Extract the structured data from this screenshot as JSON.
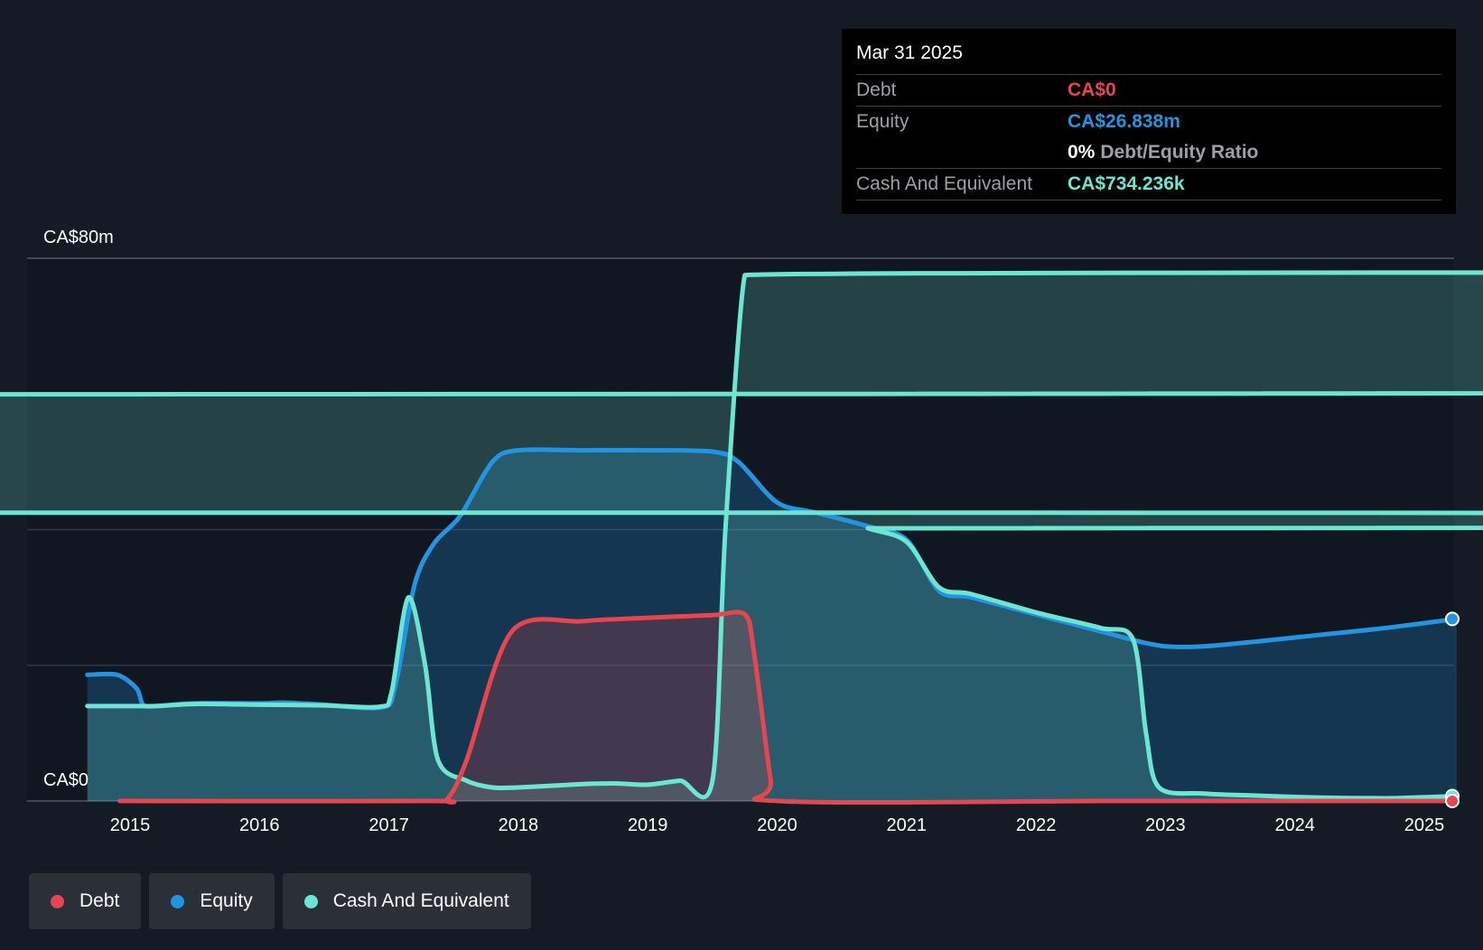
{
  "tooltip": {
    "date": "Mar 31 2025",
    "debt_label": "Debt",
    "debt_value": "CA$0",
    "equity_label": "Equity",
    "equity_value": "CA$26.838m",
    "ratio_value": "0%",
    "ratio_label": "Debt/Equity Ratio",
    "cash_label": "Cash And Equivalent",
    "cash_value": "CA$734.236k"
  },
  "legend": [
    {
      "label": "Debt",
      "color": "#e5464f"
    },
    {
      "label": "Equity",
      "color": "#2394df"
    },
    {
      "label": "Cash And Equivalent",
      "color": "#6ce5d3"
    }
  ],
  "chart_data": {
    "type": "area",
    "xlabel": "",
    "ylabel": "",
    "ylim": [
      0,
      80
    ],
    "y_unit": "CA$m",
    "y_tick_labels": [
      "CA$0",
      "CA$80m"
    ],
    "x_tick_labels": [
      "2015",
      "2016",
      "2017",
      "2018",
      "2019",
      "2020",
      "2021",
      "2022",
      "2023",
      "2024",
      "2025"
    ],
    "grid": true,
    "legend_position": "bottom-left",
    "series": [
      {
        "name": "Debt",
        "color": "#e5464f",
        "points": [
          [
            2014.92,
            0
          ],
          [
            2017.3,
            0
          ],
          [
            2017.45,
            0.3
          ],
          [
            2017.6,
            6
          ],
          [
            2017.95,
            25
          ],
          [
            2018.5,
            26.5
          ],
          [
            2019.0,
            27
          ],
          [
            2019.5,
            27.4
          ],
          [
            2019.75,
            27.5
          ],
          [
            2019.82,
            22
          ],
          [
            2019.95,
            3
          ],
          [
            2020.0,
            0
          ],
          [
            2022.5,
            0
          ],
          [
            2023.5,
            0
          ],
          [
            2024.5,
            0
          ],
          [
            2025.25,
            0
          ]
        ]
      },
      {
        "name": "Equity",
        "color": "#2394df",
        "points": [
          [
            2014.67,
            18.6
          ],
          [
            2014.9,
            18.6
          ],
          [
            2015.05,
            16.6
          ],
          [
            2015.1,
            14.2
          ],
          [
            2015.2,
            14.0
          ],
          [
            2015.5,
            14.4
          ],
          [
            2016.0,
            14.4
          ],
          [
            2016.2,
            14.5
          ],
          [
            2016.5,
            14.2
          ],
          [
            2016.95,
            13.8
          ],
          [
            2017.05,
            17
          ],
          [
            2017.2,
            32
          ],
          [
            2017.35,
            38
          ],
          [
            2017.55,
            42
          ],
          [
            2017.8,
            50
          ],
          [
            2018.0,
            51.7
          ],
          [
            2018.5,
            51.7
          ],
          [
            2019.0,
            51.7
          ],
          [
            2019.5,
            51.5
          ],
          [
            2019.7,
            50
          ],
          [
            2020.0,
            44
          ],
          [
            2020.3,
            42.5
          ],
          [
            2020.7,
            40.5
          ],
          [
            2021.0,
            38.5
          ],
          [
            2021.25,
            31
          ],
          [
            2021.5,
            30
          ],
          [
            2022.0,
            27.5
          ],
          [
            2022.5,
            25
          ],
          [
            2022.8,
            23.5
          ],
          [
            2023.0,
            22.8
          ],
          [
            2023.3,
            22.8
          ],
          [
            2023.7,
            23.5
          ],
          [
            2024.2,
            24.5
          ],
          [
            2024.7,
            25.5
          ],
          [
            2025.25,
            26.84
          ]
        ]
      },
      {
        "name": "Cash And Equivalent",
        "color": "#6ce5d3",
        "points": [
          [
            2014.67,
            14.0
          ],
          [
            2015.0,
            14.0
          ],
          [
            2015.2,
            14.0
          ],
          [
            2015.5,
            14.3
          ],
          [
            2016.0,
            14.2
          ],
          [
            2016.5,
            14.1
          ],
          [
            2016.93,
            13.9
          ],
          [
            2017.02,
            16
          ],
          [
            2017.15,
            30
          ],
          [
            2017.28,
            20
          ],
          [
            2017.38,
            6
          ],
          [
            2017.6,
            3
          ],
          [
            2017.8,
            2
          ],
          [
            2018.0,
            2
          ],
          [
            2018.5,
            2.5
          ],
          [
            2018.75,
            2.6
          ],
          [
            2019.0,
            2.4
          ],
          [
            2019.25,
            3
          ],
          [
            2019.5,
            3
          ],
          [
            2019.6,
            40
          ],
          [
            2019.75,
            77.5
          ],
          [
            2019.85,
            60
          ],
          [
            220.0,
            44
          ],
          [
            2020.3,
            42.5
          ],
          [
            2020.7,
            40.2
          ],
          [
            2021.0,
            38.2
          ],
          [
            2021.25,
            31.5
          ],
          [
            2021.5,
            30.5
          ],
          [
            2022.0,
            27.8
          ],
          [
            2022.5,
            25.5
          ],
          [
            2022.75,
            23.8
          ],
          [
            2022.85,
            10
          ],
          [
            2022.95,
            2
          ],
          [
            2023.3,
            1.1
          ],
          [
            2023.7,
            0.8
          ],
          [
            2024.2,
            0.5
          ],
          [
            2024.7,
            0.4
          ],
          [
            2024.9,
            0.5
          ],
          [
            2025.25,
            0.73
          ]
        ]
      }
    ]
  }
}
